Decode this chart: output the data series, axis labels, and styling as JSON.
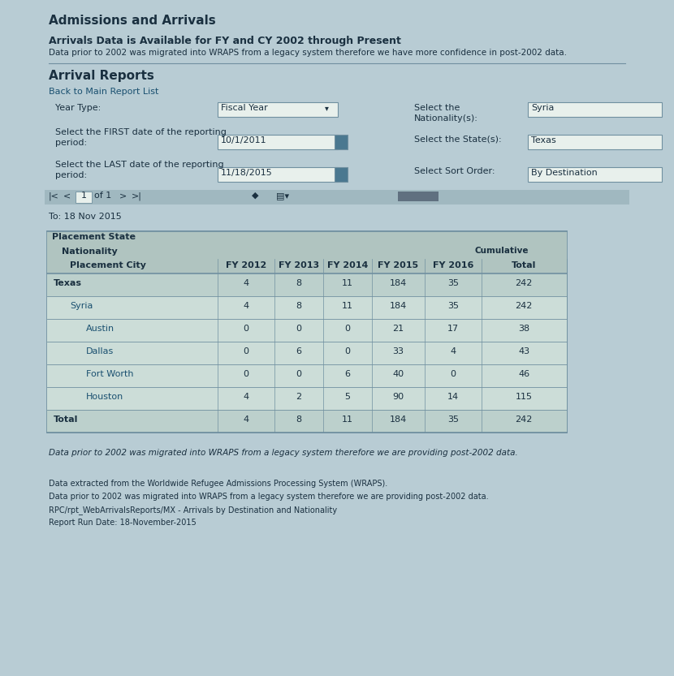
{
  "bg_color": "#b8ccd4",
  "title1": "Admissions and Arrivals",
  "title2": "Arrivals Data is Available for FY and CY 2002 through Present",
  "subtitle": "Data prior to 2002 was migrated into WRAPS from a legacy system therefore we have more confidence in post-2002 data.",
  "section_title": "Arrival Reports",
  "back_link": "Back to Main Report List",
  "to_date": "To: 18 Nov 2015",
  "table_rows": [
    {
      "label": "Texas",
      "indent": 0,
      "bold": true,
      "values": [
        "4",
        "8",
        "11",
        "184",
        "35",
        "242"
      ]
    },
    {
      "label": "Syria",
      "indent": 1,
      "bold": false,
      "values": [
        "4",
        "8",
        "11",
        "184",
        "35",
        "242"
      ]
    },
    {
      "label": "Austin",
      "indent": 2,
      "bold": false,
      "values": [
        "0",
        "0",
        "0",
        "21",
        "17",
        "38"
      ]
    },
    {
      "label": "Dallas",
      "indent": 2,
      "bold": false,
      "values": [
        "0",
        "6",
        "0",
        "33",
        "4",
        "43"
      ]
    },
    {
      "label": "Fort Worth",
      "indent": 2,
      "bold": false,
      "values": [
        "0",
        "0",
        "6",
        "40",
        "0",
        "46"
      ]
    },
    {
      "label": "Houston",
      "indent": 2,
      "bold": false,
      "values": [
        "4",
        "2",
        "5",
        "90",
        "14",
        "115"
      ]
    },
    {
      "label": "Total",
      "indent": 0,
      "bold": true,
      "values": [
        "4",
        "8",
        "11",
        "184",
        "35",
        "242"
      ]
    }
  ],
  "footer1": "Data prior to 2002 was migrated into WRAPS from a legacy system therefore we are providing post-2002 data.",
  "footer2_lines": [
    "Data extracted from the Worldwide Refugee Admissions Processing System (WRAPS).",
    "Data prior to 2002 was migrated into WRAPS from a legacy system therefore we are providing post-2002 data.",
    "RPC/rpt_WebArrivalsReports/MX - Arrivals by Destination and Nationality",
    "Report Run Date: 18-November-2015"
  ],
  "table_bg": "#ccddd8",
  "table_header_bg": "#b0c4c0",
  "table_bold_row_bg": "#bcd0cc",
  "table_border": "#7090a0",
  "text_color": "#1a3040",
  "link_color": "#1a5070",
  "input_bg": "#e8f0ec",
  "input_border": "#7090a0",
  "cal_icon_color": "#4a7890",
  "pg_bar_color": "#a0b8c0"
}
